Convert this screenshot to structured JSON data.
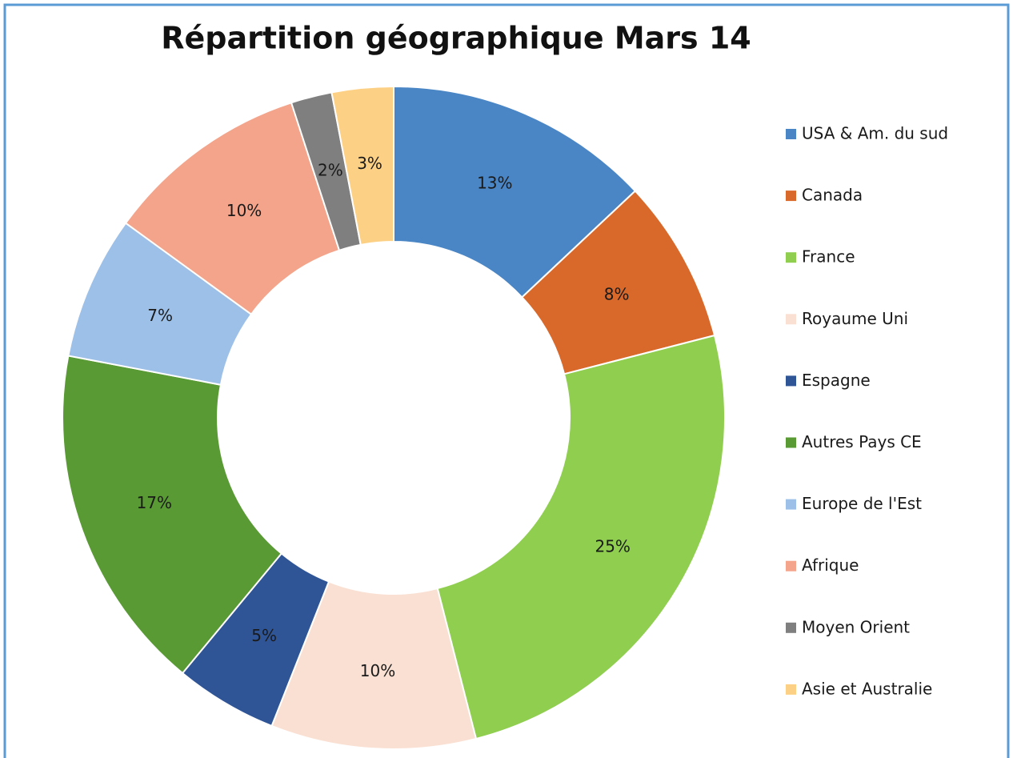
{
  "chart_data": {
    "type": "donut",
    "title": "Répartition géographique Mars 14",
    "categories": [
      "USA & Am. du sud",
      "Canada",
      "France",
      "Royaume Uni",
      "Espagne",
      "Autres Pays CE",
      "Europe de l'Est",
      "Afrique",
      "Moyen Orient",
      "Asie et Australie"
    ],
    "values": [
      13,
      8,
      25,
      10,
      5,
      17,
      7,
      10,
      2,
      3
    ],
    "value_labels": [
      "13%",
      "8%",
      "25%",
      "10%",
      "5%",
      "17%",
      "7%",
      "10%",
      "2%",
      "3%"
    ],
    "colors": [
      "#4a86c5",
      "#d9692b",
      "#8fce4f",
      "#f9e0d2",
      "#2f5597",
      "#5a9a35",
      "#9dc0e8",
      "#f3a48a",
      "#7f7f7f",
      "#fdd185"
    ],
    "legend": "right"
  }
}
